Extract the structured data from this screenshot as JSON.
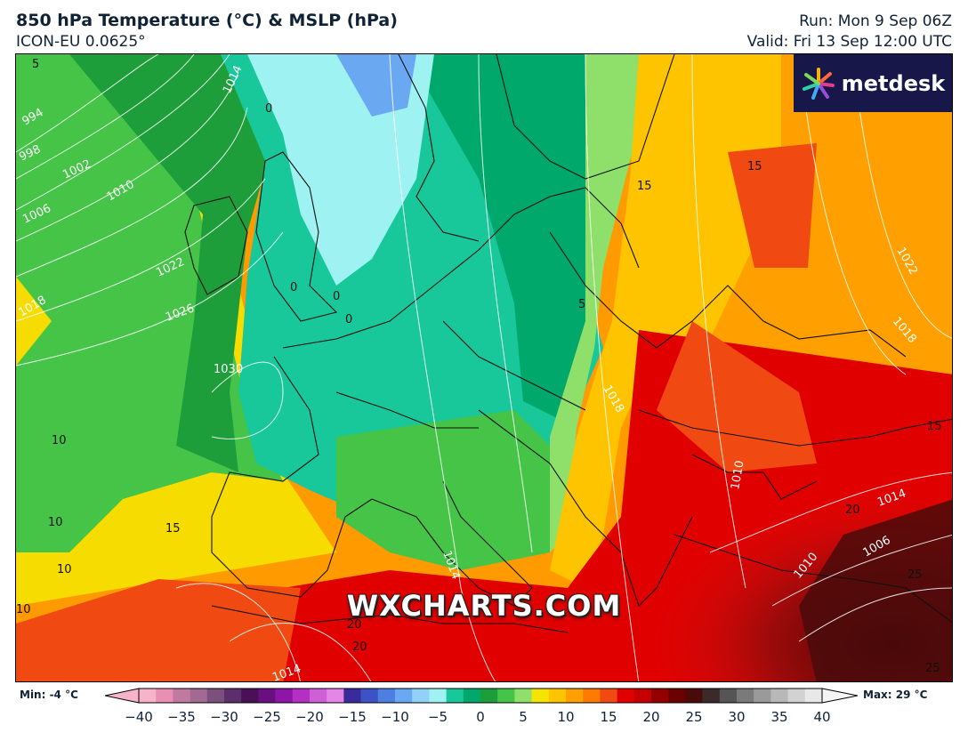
{
  "header": {
    "title": "850 hPa Temperature (°C) & MSLP (hPa)",
    "model": "ICON-EU 0.0625°",
    "run": "Run: Mon 9 Sep 06Z",
    "valid": "Valid: Fri 13 Sep 12:00 UTC"
  },
  "logo": {
    "text": "metdesk"
  },
  "watermark": "WXCHARTS.COM",
  "map": {
    "isobar_labels": [
      "994",
      "998",
      "1002",
      "1006",
      "1010",
      "1014",
      "1018",
      "1022",
      "1026",
      "1030",
      "1014",
      "1018",
      "1022",
      "1010",
      "1014",
      "1006",
      "1010",
      "1014",
      "1018"
    ],
    "temp_labels": [
      "5",
      "0",
      "0",
      "0",
      "0",
      "10",
      "15",
      "10",
      "10",
      "10",
      "15",
      "15",
      "5",
      "15",
      "20",
      "20",
      "20",
      "25",
      "25"
    ]
  },
  "colorbar": {
    "min_label": "Min: -4 °C",
    "max_label": "Max: 29 °C",
    "ticks": [
      "−40",
      "−35",
      "−30",
      "−25",
      "−20",
      "−15",
      "−10",
      "−5",
      "0",
      "5",
      "10",
      "15",
      "20",
      "25",
      "30",
      "35",
      "40"
    ],
    "range": [
      -40,
      40
    ],
    "colors": [
      "#f7b3c9",
      "#e88fb3",
      "#c07aa0",
      "#a06a92",
      "#7d4f7d",
      "#5c2e6a",
      "#4a1057",
      "#6a0f82",
      "#8e15a8",
      "#b42fc4",
      "#cf5fd8",
      "#e486e6",
      "#3a2a9a",
      "#3d52c4",
      "#4d7fe0",
      "#6aa9f2",
      "#93d0f7",
      "#9ff2f2",
      "#18c79a",
      "#00a86b",
      "#1e9e3a",
      "#45c448",
      "#8ee06a",
      "#f5e400",
      "#ffc400",
      "#ffa000",
      "#ff7a00",
      "#f04a12",
      "#e00000",
      "#c40000",
      "#940000",
      "#6a0000",
      "#4a0a0a",
      "#3a2a2a",
      "#555555",
      "#7a7a7a",
      "#9a9a9a",
      "#b8b8b8",
      "#d2d2d2",
      "#e8e8e8"
    ]
  }
}
